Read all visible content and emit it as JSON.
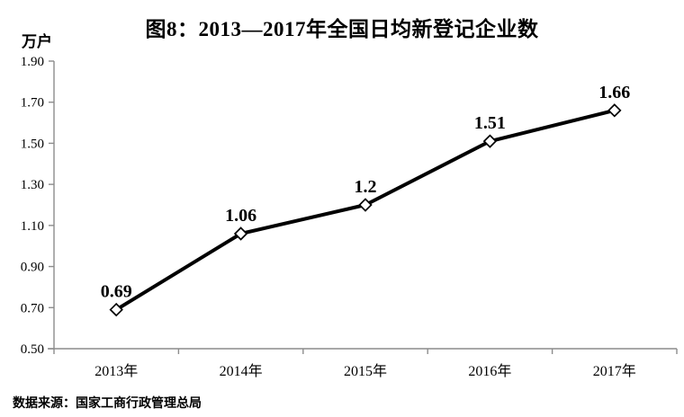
{
  "title": "图8：2013—2017年全国日均新登记企业数",
  "source": "数据来源：国家工商行政管理总局",
  "colors": {
    "line": "#000000",
    "marker_fill": "#ffffff",
    "marker_stroke": "#000000",
    "axis": "#8c8c8c",
    "text": "#000000"
  },
  "chart_data": {
    "type": "line",
    "title": "图8：2013—2017年全国日均新登记企业数",
    "ylabel": "万户",
    "xlabel": "",
    "categories": [
      "2013年",
      "2014年",
      "2015年",
      "2016年",
      "2017年"
    ],
    "values": [
      0.69,
      1.06,
      1.2,
      1.51,
      1.66
    ],
    "data_labels": [
      "0.69",
      "1.06",
      "1.2",
      "1.51",
      "1.66"
    ],
    "ylim": [
      0.5,
      1.9
    ],
    "ytick_step": 0.2,
    "yticks": [
      "0.50",
      "0.70",
      "0.90",
      "1.10",
      "1.30",
      "1.50",
      "1.70",
      "1.90"
    ],
    "grid": false,
    "legend": false,
    "marker": "diamond",
    "source_note": "数据来源：国家工商行政管理总局"
  }
}
